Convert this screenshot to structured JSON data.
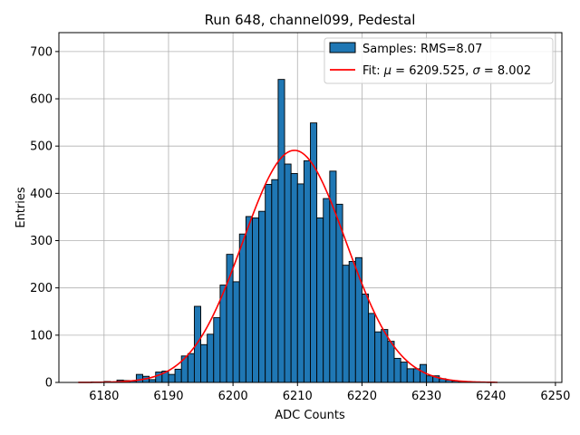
{
  "chart_data": {
    "type": "bar",
    "title": "Run 648, channel099, Pedestal",
    "xlabel": "ADC Counts",
    "ylabel": "Entries",
    "xlim": [
      6173,
      6251
    ],
    "ylim": [
      0,
      740
    ],
    "xticks": [
      6180,
      6190,
      6200,
      6210,
      6220,
      6230,
      6240,
      6250
    ],
    "yticks": [
      0,
      100,
      200,
      300,
      400,
      500,
      600,
      700
    ],
    "grid": true,
    "legend_position": "top-right",
    "hist_color": "#1f77b4",
    "fit_color": "#ff0000",
    "bin_width": 1,
    "bins": [
      [
        6178,
        1
      ],
      [
        6179,
        1
      ],
      [
        6180,
        2
      ],
      [
        6181,
        1
      ],
      [
        6182,
        5
      ],
      [
        6183,
        4
      ],
      [
        6184,
        3
      ],
      [
        6185,
        17
      ],
      [
        6186,
        13
      ],
      [
        6187,
        6
      ],
      [
        6188,
        22
      ],
      [
        6189,
        24
      ],
      [
        6190,
        17
      ],
      [
        6191,
        28
      ],
      [
        6192,
        56
      ],
      [
        6193,
        61
      ],
      [
        6194,
        161
      ],
      [
        6195,
        80
      ],
      [
        6196,
        102
      ],
      [
        6197,
        137
      ],
      [
        6198,
        206
      ],
      [
        6199,
        271
      ],
      [
        6200,
        213
      ],
      [
        6201,
        314
      ],
      [
        6202,
        351
      ],
      [
        6203,
        348
      ],
      [
        6204,
        362
      ],
      [
        6205,
        419
      ],
      [
        6206,
        429
      ],
      [
        6207,
        641
      ],
      [
        6208,
        462
      ],
      [
        6209,
        442
      ],
      [
        6210,
        420
      ],
      [
        6211,
        469
      ],
      [
        6212,
        549
      ],
      [
        6213,
        348
      ],
      [
        6214,
        389
      ],
      [
        6215,
        447
      ],
      [
        6216,
        377
      ],
      [
        6217,
        248
      ],
      [
        6218,
        256
      ],
      [
        6219,
        264
      ],
      [
        6220,
        187
      ],
      [
        6221,
        146
      ],
      [
        6222,
        107
      ],
      [
        6223,
        112
      ],
      [
        6224,
        87
      ],
      [
        6225,
        51
      ],
      [
        6226,
        43
      ],
      [
        6227,
        29
      ],
      [
        6228,
        29
      ],
      [
        6229,
        38
      ],
      [
        6230,
        14
      ],
      [
        6231,
        14
      ],
      [
        6232,
        8
      ],
      [
        6233,
        5
      ],
      [
        6234,
        3
      ],
      [
        6235,
        2
      ],
      [
        6236,
        2
      ],
      [
        6237,
        1
      ],
      [
        6238,
        1
      ]
    ],
    "fit": {
      "mu": 6209.525,
      "sigma": 8.002,
      "peak": 491,
      "x_range": [
        6176,
        6241
      ]
    },
    "legend": {
      "samples_label": "Samples: RMS=8.07",
      "fit_prefix": "Fit: ",
      "fit_mu_symbol": "μ",
      "fit_mu_text": " = 6209.525, ",
      "fit_sigma_symbol": "σ",
      "fit_sigma_text": " = 8.002"
    }
  }
}
